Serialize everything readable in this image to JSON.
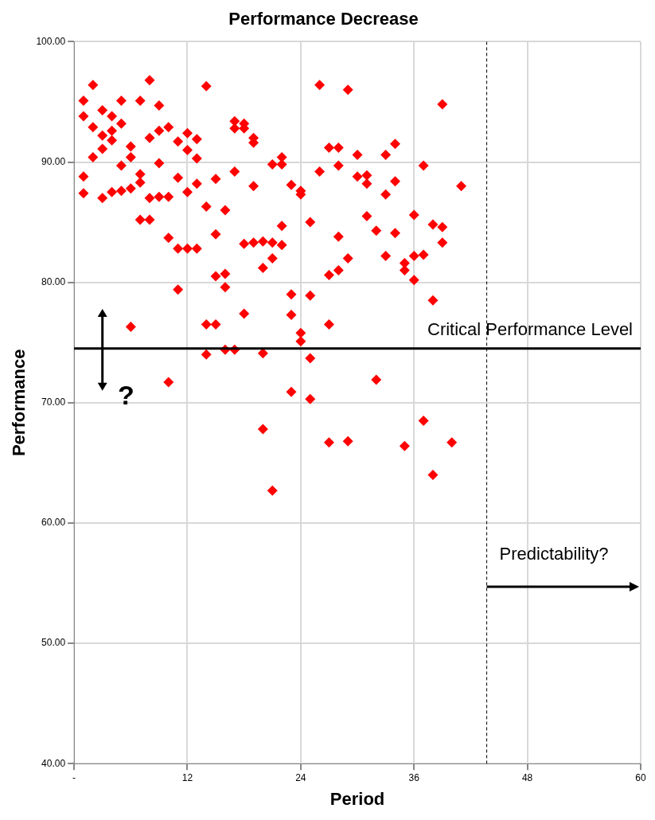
{
  "chart_data": {
    "type": "scatter",
    "title": "Performance Decrease",
    "xlabel": "Period",
    "ylabel": "Performance",
    "x": [
      1,
      1,
      1,
      1,
      2,
      2,
      2,
      3,
      3,
      3,
      3,
      4,
      4,
      4,
      4,
      5,
      5,
      5,
      5,
      6,
      6,
      6,
      6,
      7,
      7,
      7,
      7,
      8,
      8,
      8,
      8,
      9,
      9,
      9,
      9,
      10,
      10,
      10,
      10,
      11,
      11,
      11,
      11,
      12,
      12,
      12,
      12,
      13,
      13,
      13,
      13,
      14,
      14,
      14,
      14,
      15,
      15,
      15,
      15,
      16,
      16,
      16,
      16,
      17,
      17,
      17,
      17,
      18,
      18,
      18,
      18,
      19,
      19,
      19,
      19,
      20,
      20,
      20,
      20,
      21,
      21,
      21,
      21,
      22,
      22,
      22,
      22,
      23,
      23,
      23,
      23,
      24,
      24,
      24,
      24,
      25,
      25,
      25,
      25,
      26,
      26,
      27,
      27,
      27,
      27,
      28,
      28,
      28,
      28,
      29,
      29,
      29,
      30,
      30,
      31,
      31,
      31,
      32,
      32,
      33,
      33,
      33,
      34,
      34,
      34,
      35,
      35,
      35,
      36,
      36,
      36,
      37,
      37,
      37,
      38,
      38,
      38,
      39,
      39,
      39,
      40,
      41
    ],
    "series": [
      {
        "color": "#ff0000",
        "values": [
          95.1,
          93.8,
          88.8,
          87.4,
          96.4,
          92.9,
          90.4,
          94.3,
          92.2,
          91.1,
          87.0,
          93.8,
          92.6,
          91.8,
          87.5,
          95.1,
          93.2,
          89.7,
          87.6,
          91.3,
          90.4,
          87.8,
          76.3,
          95.1,
          89.0,
          88.3,
          85.2,
          96.8,
          92.0,
          87.0,
          85.2,
          94.7,
          92.6,
          89.9,
          87.1,
          92.9,
          87.1,
          83.7,
          71.7,
          91.7,
          88.7,
          82.8,
          79.4,
          92.4,
          91.0,
          87.5,
          82.8,
          91.9,
          90.3,
          88.2,
          82.8,
          96.3,
          86.3,
          76.5,
          74.0,
          88.6,
          84.0,
          80.5,
          76.5,
          86.0,
          80.7,
          79.6,
          74.4,
          93.4,
          92.8,
          89.2,
          74.4,
          93.2,
          92.8,
          83.2,
          77.4,
          92.0,
          91.6,
          88.0,
          83.3,
          83.4,
          81.2,
          74.1,
          67.8,
          89.8,
          83.3,
          82.0,
          62.7,
          90.4,
          89.8,
          84.7,
          83.1,
          88.1,
          79.0,
          77.3,
          70.9,
          87.6,
          87.3,
          75.8,
          75.1,
          85.0,
          78.9,
          73.7,
          70.3,
          96.4,
          89.2,
          91.2,
          80.6,
          76.5,
          66.7,
          91.2,
          89.7,
          83.8,
          81.0,
          96.0,
          82.0,
          66.8,
          90.6,
          88.8,
          88.9,
          88.2,
          85.5,
          84.3,
          71.9,
          90.6,
          87.3,
          82.2,
          91.5,
          88.4,
          84.1,
          81.6,
          81.0,
          66.4,
          85.6,
          82.2,
          80.2,
          89.7,
          82.3,
          68.5,
          84.8,
          78.5,
          64.0,
          94.8,
          84.6,
          83.3,
          66.7,
          88.0
        ]
      }
    ],
    "marker": "diamond",
    "xlim": [
      0,
      60
    ],
    "xticks": [
      {
        "value": 0,
        "label": "-"
      },
      12,
      24,
      36,
      48,
      60
    ],
    "ylim": [
      40,
      100
    ],
    "yticks": [
      {
        "value": 40,
        "label": "40.00"
      },
      {
        "value": 50,
        "label": "50.00"
      },
      {
        "value": 60,
        "label": "60.00"
      },
      {
        "value": 70,
        "label": "70.00"
      },
      {
        "value": 80,
        "label": "80.00"
      },
      {
        "value": 90,
        "label": "90.00"
      },
      {
        "value": 100,
        "label": "100.00"
      }
    ],
    "grid": true,
    "legend": false,
    "ref_lines": [
      {
        "axis": "y",
        "value": 74.5,
        "label": "Critical Performance Level",
        "color": "#000000",
        "line_style": "solid"
      },
      {
        "axis": "x",
        "value": 43.7,
        "label": "Predictability?",
        "color": "#000000",
        "line_style": "dashed"
      }
    ],
    "annotations": [
      "?"
    ]
  }
}
